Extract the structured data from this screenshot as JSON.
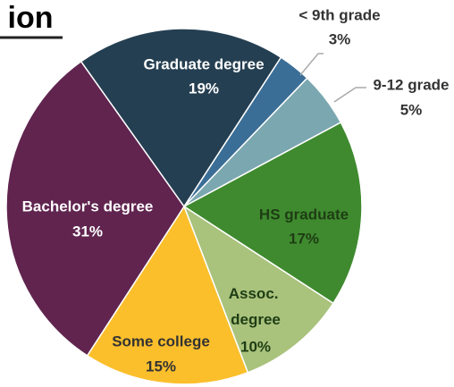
{
  "chart_data": {
    "type": "pie",
    "title": "ion",
    "categories": [
      "< 9th grade",
      "9-12 grade",
      "HS graduate",
      "Assoc. degree",
      "Some college",
      "Bachelor's degree",
      "Graduate degree"
    ],
    "values": [
      3,
      5,
      17,
      10,
      15,
      31,
      19
    ],
    "value_labels": [
      "3%",
      "5%",
      "17%",
      "10%",
      "15%",
      "31%",
      "19%"
    ],
    "colors": [
      "#3b6e96",
      "#7ba7b0",
      "#3f8a2f",
      "#a9c27c",
      "#fbbf2c",
      "#60244f",
      "#253f52"
    ]
  }
}
